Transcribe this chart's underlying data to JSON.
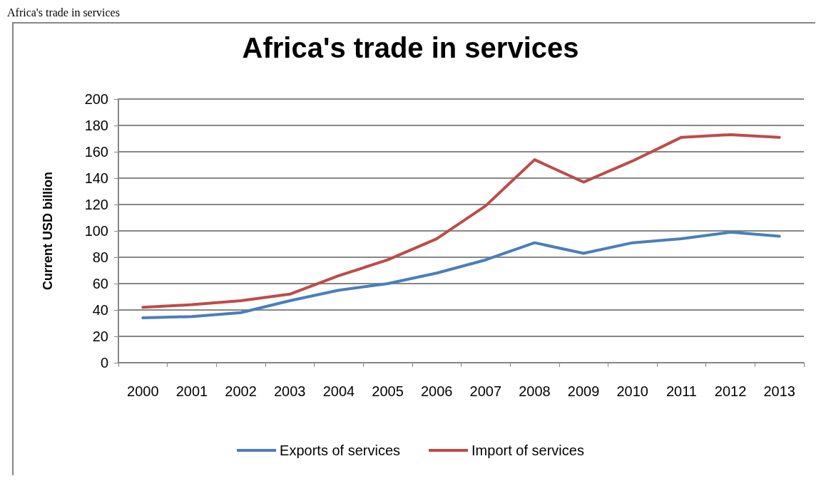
{
  "chart_data": {
    "type": "line",
    "title": "Africa's trade in services",
    "ylabel": "Current USD billion",
    "annotations": [
      "Africa's trade in services"
    ],
    "categories": [
      "2000",
      "2001",
      "2002",
      "2003",
      "2004",
      "2005",
      "2006",
      "2007",
      "2008",
      "2009",
      "2010",
      "2011",
      "2012",
      "2013"
    ],
    "series": [
      {
        "name": "Exports of services",
        "color": "#4a7ebb",
        "values": [
          34,
          35,
          38,
          47,
          55,
          60,
          68,
          78,
          91,
          83,
          91,
          94,
          99,
          96
        ]
      },
      {
        "name": "Import of services",
        "color": "#be4b48",
        "values": [
          42,
          44,
          47,
          52,
          66,
          78,
          94,
          119,
          154,
          137,
          153,
          171,
          173,
          171
        ]
      }
    ],
    "ylim": [
      0,
      200
    ],
    "yticks": [
      0,
      20,
      40,
      60,
      80,
      100,
      120,
      140,
      160,
      180,
      200
    ],
    "grid": "y",
    "legend": "bottom",
    "marker": "none",
    "line_style": "solid"
  }
}
